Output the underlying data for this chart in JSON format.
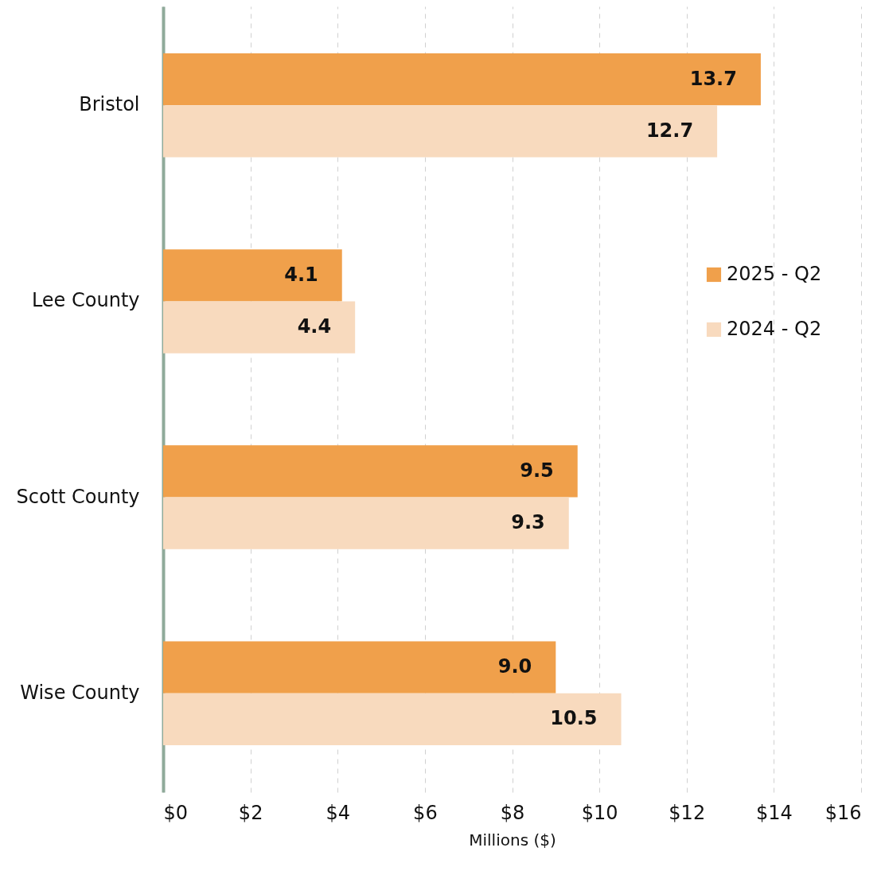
{
  "chart_data": {
    "type": "bar",
    "orientation": "horizontal",
    "categories": [
      "Bristol",
      "Lee County",
      "Scott County",
      "Wise County"
    ],
    "series": [
      {
        "name": "2025 - Q2",
        "color": "#f0a04b",
        "values": [
          13.7,
          4.1,
          9.5,
          9.0
        ],
        "value_labels": [
          "13.7",
          "4.1",
          "9.5",
          "9.0"
        ]
      },
      {
        "name": "2024 - Q2",
        "color": "#f8dabe",
        "values": [
          12.7,
          4.4,
          9.3,
          10.5
        ],
        "value_labels": [
          "12.7",
          "4.4",
          "9.3",
          "10.5"
        ]
      }
    ],
    "xlabel": "Millions ($)",
    "xlim": [
      0,
      16
    ],
    "xticks": [
      {
        "value": 0,
        "label": "$0"
      },
      {
        "value": 2,
        "label": "$2"
      },
      {
        "value": 4,
        "label": "$4"
      },
      {
        "value": 6,
        "label": "$6"
      },
      {
        "value": 8,
        "label": "$8"
      },
      {
        "value": 10,
        "label": "$10"
      },
      {
        "value": 12,
        "label": "$12"
      },
      {
        "value": 14,
        "label": "$14"
      },
      {
        "value": 16,
        "label": "$16"
      }
    ],
    "grid": "x",
    "legend": "right"
  }
}
